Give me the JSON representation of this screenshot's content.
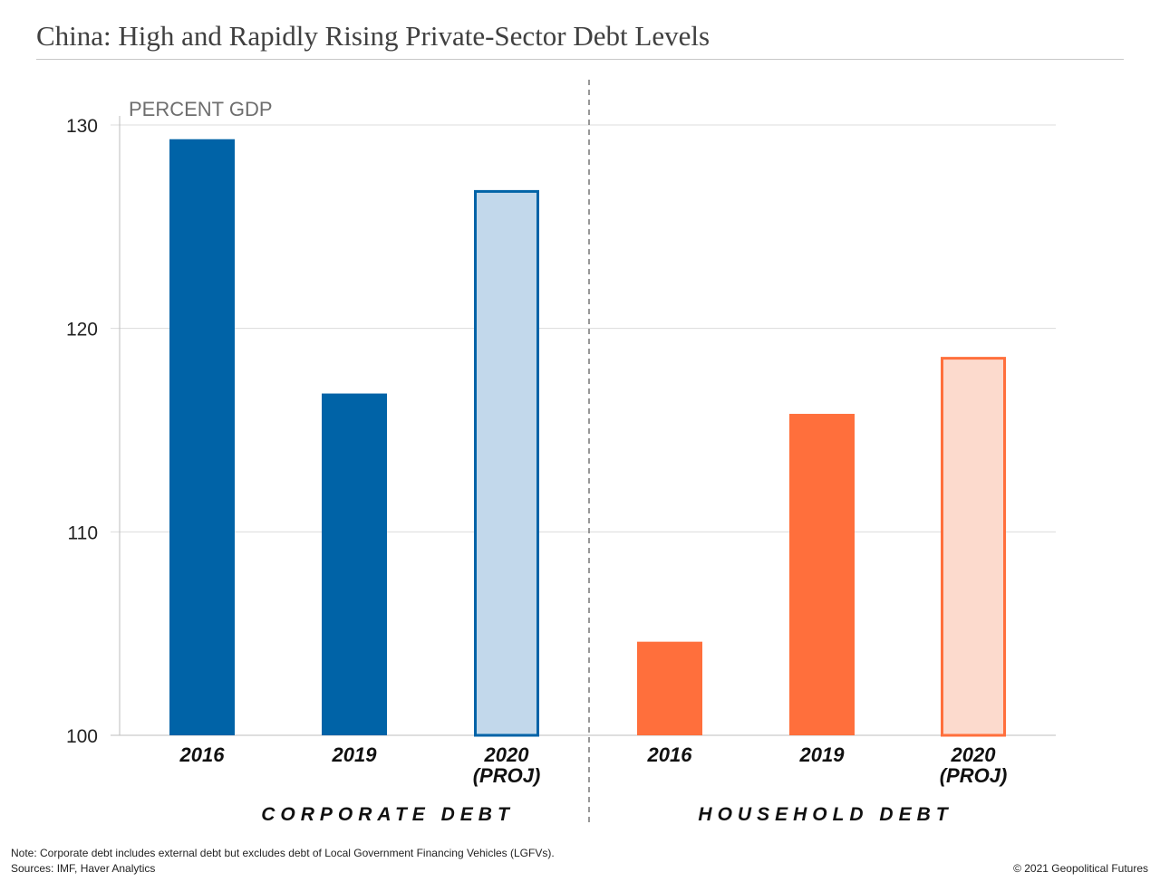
{
  "title": "China: High and Rapidly Rising Private-Sector Debt Levels",
  "note": "Note: Corporate debt includes external debt but excludes debt of Local Government Financing Vehicles (LGFVs).",
  "sources": "Sources: IMF, Haver Analytics",
  "copyright": "© 2021 Geopolitical Futures",
  "chart_data": {
    "type": "bar",
    "ylabel": "PERCENT GDP",
    "ylim": [
      100,
      130
    ],
    "yticks": [
      100,
      110,
      120,
      130
    ],
    "grid": true,
    "groups": [
      {
        "label": "CORPORATE DEBT",
        "color": "#0063a7",
        "projection_fill": "#c2d8eb",
        "bars": [
          {
            "label": [
              "2016"
            ],
            "value": 129.3,
            "projected": false
          },
          {
            "label": [
              "2019"
            ],
            "value": 116.8,
            "projected": false
          },
          {
            "label": [
              "2020",
              "(PROJ)"
            ],
            "value": 126.8,
            "projected": true
          }
        ]
      },
      {
        "label": "HOUSEHOLD DEBT",
        "color": "#ff6f3c",
        "projection_fill": "#fcdacd",
        "bars": [
          {
            "label": [
              "2016"
            ],
            "value": 104.6,
            "projected": false
          },
          {
            "label": [
              "2019"
            ],
            "value": 115.8,
            "projected": false
          },
          {
            "label": [
              "2020",
              "(PROJ)"
            ],
            "value": 118.6,
            "projected": true
          }
        ]
      }
    ]
  }
}
